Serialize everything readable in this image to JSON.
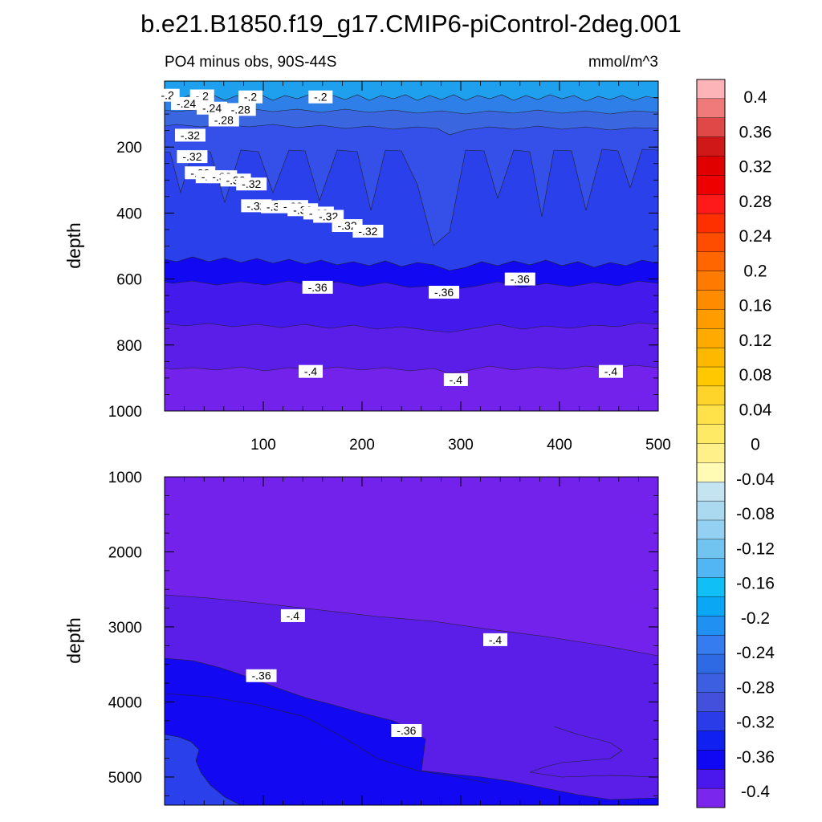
{
  "title": "b.e21.B1850.f19_g17.CMIP6-piControl-2deg.001",
  "chart_data": {
    "type": "contour",
    "variable_label": "PO4 minus obs, 90S-44S",
    "units": "mmol/m^3",
    "x_ticks": [
      "100",
      "200",
      "300",
      "400",
      "500"
    ],
    "x_range": [
      0,
      500
    ],
    "panels": [
      {
        "name": "upper",
        "ylabel": "depth",
        "y_range": [
          0,
          1000
        ],
        "y_ticks": [
          "200",
          "400",
          "600",
          "800",
          "1000"
        ],
        "contour_bands": [
          {
            "from_depth_at_x0": 0,
            "to_depth_at_x0": 30,
            "fill": "#1fa0ee"
          },
          {
            "from_depth_at_x0": 30,
            "to_depth_at_x0": 80,
            "fill": "#2e7fe8"
          },
          {
            "from_depth_at_x0": 80,
            "to_depth_at_x0": 150,
            "fill": "#3a66e0"
          },
          {
            "from_depth_at_x0": 150,
            "to_depth_at_x0": 210,
            "fill": "#3450e8"
          },
          {
            "from_depth_at_x0": 210,
            "to_depth_at_x0": 530,
            "fill": "#2a40ea"
          },
          {
            "from_depth_at_x0": 530,
            "to_depth_at_x0": 650,
            "fill": "#1208f2"
          },
          {
            "from_depth_at_x0": 650,
            "to_depth_at_x0": 760,
            "fill": "#4419ec"
          },
          {
            "from_depth_at_x0": 760,
            "to_depth_at_x0": 875,
            "fill": "#5a1ee8"
          },
          {
            "from_depth_at_x0": 875,
            "to_depth_at_x0": 1000,
            "fill": "#7222ea"
          }
        ],
        "contour_labels": [
          {
            "text": "-.2",
            "x": 3,
            "y": 43
          },
          {
            "text": "-.2",
            "x": 38,
            "y": 45
          },
          {
            "text": "-.2",
            "x": 87,
            "y": 48
          },
          {
            "text": "-.2",
            "x": 158,
            "y": 48
          },
          {
            "text": "-.24",
            "x": 22,
            "y": 68
          },
          {
            "text": "-.24",
            "x": 48,
            "y": 82
          },
          {
            "text": "-.28",
            "x": 77,
            "y": 86
          },
          {
            "text": "-.28",
            "x": 60,
            "y": 118
          },
          {
            "text": "-.32",
            "x": 26,
            "y": 164
          },
          {
            "text": "-.32",
            "x": 28,
            "y": 229
          },
          {
            "text": "-.32",
            "x": 36,
            "y": 278
          },
          {
            "text": "-.32",
            "x": 47,
            "y": 290
          },
          {
            "text": "-.32",
            "x": 58,
            "y": 290
          },
          {
            "text": "-.32",
            "x": 72,
            "y": 300
          },
          {
            "text": "-.32",
            "x": 88,
            "y": 312
          },
          {
            "text": "-.32",
            "x": 93,
            "y": 378
          },
          {
            "text": "-.32",
            "x": 113,
            "y": 381
          },
          {
            "text": "-.32",
            "x": 130,
            "y": 380
          },
          {
            "text": "-.32",
            "x": 140,
            "y": 390
          },
          {
            "text": "-.32",
            "x": 156,
            "y": 400
          },
          {
            "text": "-.32",
            "x": 166,
            "y": 410
          },
          {
            "text": "-.32",
            "x": 185,
            "y": 438
          },
          {
            "text": "-.32",
            "x": 206,
            "y": 455
          },
          {
            "text": "-.36",
            "x": 155,
            "y": 625
          },
          {
            "text": "-.36",
            "x": 283,
            "y": 640
          },
          {
            "text": "-.36",
            "x": 360,
            "y": 600
          },
          {
            "text": "-.4",
            "x": 148,
            "y": 880
          },
          {
            "text": "-.4",
            "x": 295,
            "y": 905
          },
          {
            "text": "-.4",
            "x": 452,
            "y": 880
          }
        ]
      },
      {
        "name": "lower",
        "ylabel": "depth",
        "y_range": [
          1000,
          5375
        ],
        "y_ticks": [
          "1000",
          "2000",
          "3000",
          "4000",
          "5000"
        ],
        "contour_bands": [
          {
            "level": -0.4,
            "fill": "#7222ea"
          },
          {
            "level": -0.36,
            "fill": "#5a1ee8"
          },
          {
            "level": -0.32,
            "fill": "#1208f2"
          },
          {
            "level": -0.28,
            "fill": "#2a40ea"
          }
        ],
        "contour_labels": [
          {
            "text": "-.4",
            "x": 130,
            "y": 2850
          },
          {
            "text": "-.4",
            "x": 335,
            "y": 3170
          },
          {
            "text": "-.36",
            "x": 98,
            "y": 3650
          },
          {
            "text": "-.36",
            "x": 245,
            "y": 4380
          }
        ]
      }
    ],
    "colorbar": {
      "labels": [
        "0.4",
        "0.36",
        "0.32",
        "0.28",
        "0.24",
        "0.2",
        "0.16",
        "0.12",
        "0.08",
        "0.04",
        "0",
        "-0.04",
        "-0.08",
        "-0.12",
        "-0.16",
        "-0.2",
        "-0.24",
        "-0.28",
        "-0.32",
        "-0.36",
        "-0.4"
      ],
      "colors": [
        "#fdb4b8",
        "#f07a7a",
        "#e04848",
        "#d01818",
        "#e00000",
        "#ee0000",
        "#ff1a1a",
        "#ff3000",
        "#ff4d00",
        "#ff6600",
        "#ff7a00",
        "#ff8c00",
        "#ff9c00",
        "#ffaa00",
        "#ffb800",
        "#ffc800",
        "#ffd42a",
        "#ffe24a",
        "#ffea66",
        "#fff08a",
        "#fffab4",
        "#c4e4f2",
        "#aad9f0",
        "#94d0f2",
        "#72c4f0",
        "#52b6f4",
        "#10bff6",
        "#0aa8f4",
        "#2090f2",
        "#347cf0",
        "#2e6ae4",
        "#3c5ee0",
        "#4250dc",
        "#2a3ce8",
        "#1020f0",
        "#1008f2",
        "#4a18ec",
        "#7a26ec"
      ]
    }
  }
}
